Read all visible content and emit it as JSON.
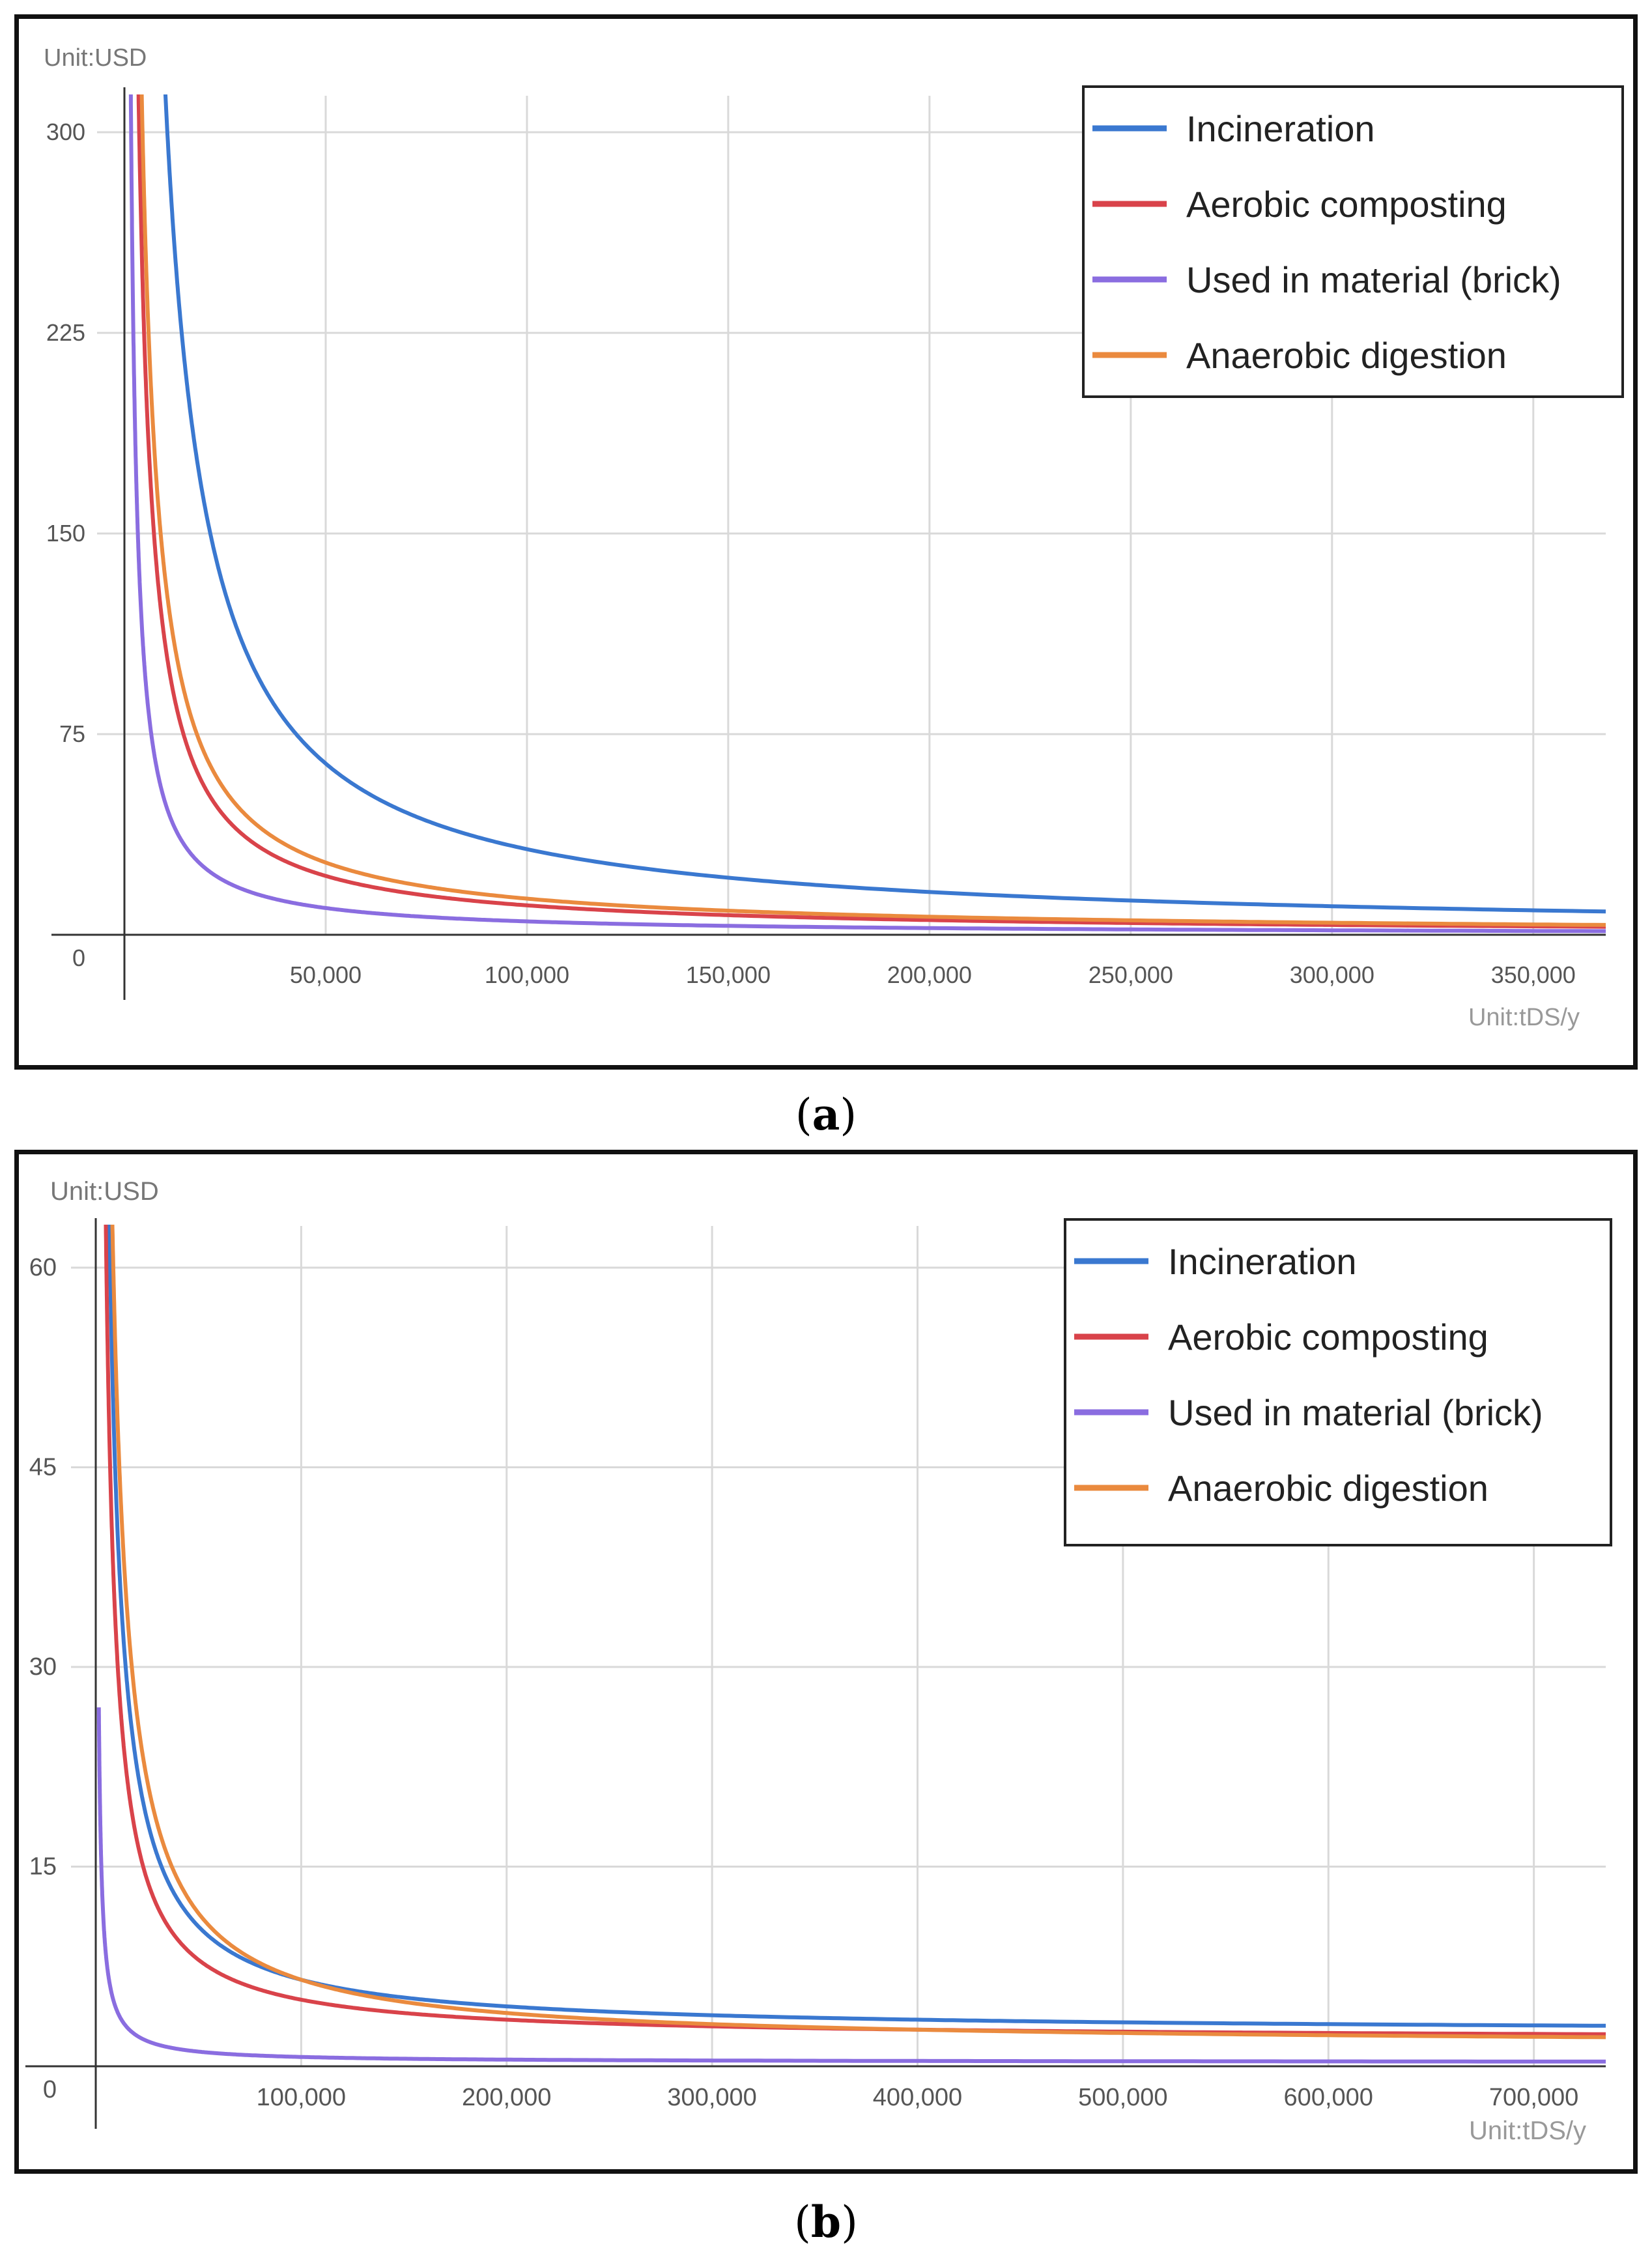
{
  "figure": {
    "caption_a": "a",
    "caption_b": "b"
  },
  "colors": {
    "incineration": "#3a78d0",
    "aerobic": "#d9434a",
    "brick": "#8a6de0",
    "anaerobic": "#ea8a3e"
  },
  "chart_data": [
    {
      "type": "line",
      "panel": "a",
      "ylabel": "Unit:USD",
      "xlabel": "Unit:tDS/y",
      "xlim": [
        0,
        368000
      ],
      "ylim": [
        -10,
        315
      ],
      "yticks": [
        0,
        75,
        150,
        225,
        300
      ],
      "ytick_labels": [
        "0",
        "75",
        "150",
        "225",
        "300"
      ],
      "xticks": [
        50000,
        100000,
        150000,
        200000,
        250000,
        300000,
        350000
      ],
      "xtick_labels": [
        "50,000",
        "100,000",
        "150,000",
        "200,000",
        "250,000",
        "300,000",
        "350,000"
      ],
      "legend_position": "top-right",
      "grid": true,
      "series": [
        {
          "name": "Incineration",
          "color": "#3a78d0",
          "k": 3200000,
          "x": [
            10000,
            25000,
            50000,
            100000,
            150000,
            200000,
            250000,
            300000,
            350000,
            368000
          ],
          "values": [
            320,
            128,
            64,
            32,
            21.3,
            16,
            12.8,
            10.7,
            9.1,
            8.7
          ]
        },
        {
          "name": "Aerobic composting",
          "color": "#d9434a",
          "k": 1100000,
          "x": [
            10000,
            25000,
            50000,
            100000,
            150000,
            200000,
            250000,
            300000,
            350000,
            368000
          ],
          "values": [
            110,
            44,
            22,
            11,
            7.3,
            5.5,
            4.4,
            3.7,
            3.1,
            3.0
          ]
        },
        {
          "name": "Used in material (brick)",
          "color": "#8a6de0",
          "k": 500000,
          "x": [
            10000,
            25000,
            50000,
            100000,
            150000,
            200000,
            250000,
            300000,
            350000,
            368000
          ],
          "values": [
            50,
            20,
            10,
            5,
            3.3,
            2.5,
            2,
            1.7,
            1.4,
            1.4
          ]
        },
        {
          "name": "Anaerobic digestion",
          "color": "#ea8a3e",
          "k": 1350000,
          "x": [
            10000,
            25000,
            50000,
            100000,
            150000,
            200000,
            250000,
            300000,
            350000,
            368000
          ],
          "values": [
            135,
            54,
            27,
            13.5,
            9,
            6.8,
            5.4,
            4.5,
            3.9,
            3.7
          ]
        }
      ]
    },
    {
      "type": "line",
      "panel": "b",
      "ylabel": "Unit:USD",
      "xlabel": "Unit:tDS/y",
      "xlim": [
        0,
        735000
      ],
      "ylim": [
        -2,
        62.5
      ],
      "yticks": [
        0,
        15,
        30,
        45,
        60
      ],
      "ytick_labels": [
        "0",
        "15",
        "30",
        "45",
        "60"
      ],
      "xticks": [
        100000,
        200000,
        300000,
        400000,
        500000,
        600000,
        700000
      ],
      "xtick_labels": [
        "100,000",
        "200,000",
        "300,000",
        "400,000",
        "500,000",
        "600,000",
        "700,000"
      ],
      "legend_position": "top-right",
      "grid": true,
      "series": [
        {
          "name": "Incineration",
          "color": "#3a78d0",
          "k": 400000,
          "c": 2.5,
          "x": [
            10000,
            50000,
            100000,
            200000,
            300000,
            400000,
            500000,
            600000,
            700000,
            735000
          ],
          "values": [
            42.5,
            10.5,
            6.5,
            4.5,
            3.8,
            3.5,
            3.3,
            3.2,
            3.1,
            3.0
          ]
        },
        {
          "name": "Aerobic composting",
          "color": "#d9434a",
          "k": 300000,
          "c": 2.0,
          "x": [
            10000,
            50000,
            100000,
            200000,
            300000,
            400000,
            500000,
            600000,
            700000,
            735000
          ],
          "values": [
            32,
            8,
            5,
            3.5,
            3.0,
            2.75,
            2.6,
            2.5,
            2.4,
            2.4
          ]
        },
        {
          "name": "Used in material (brick)",
          "color": "#8a6de0",
          "k": 40000,
          "c": 0.3,
          "x": [
            10000,
            50000,
            100000,
            200000,
            300000,
            400000,
            500000,
            600000,
            700000,
            735000
          ],
          "values": [
            4.3,
            1.1,
            0.7,
            0.5,
            0.43,
            0.4,
            0.38,
            0.37,
            0.36,
            0.35
          ]
        },
        {
          "name": "Anaerobic digestion",
          "color": "#ea8a3e",
          "k": 500000,
          "c": 1.5,
          "x": [
            10000,
            50000,
            100000,
            200000,
            300000,
            400000,
            500000,
            600000,
            700000,
            735000
          ],
          "values": [
            51.5,
            11.5,
            6.5,
            4.0,
            3.2,
            2.75,
            2.5,
            2.3,
            2.2,
            2.2
          ]
        }
      ]
    }
  ]
}
